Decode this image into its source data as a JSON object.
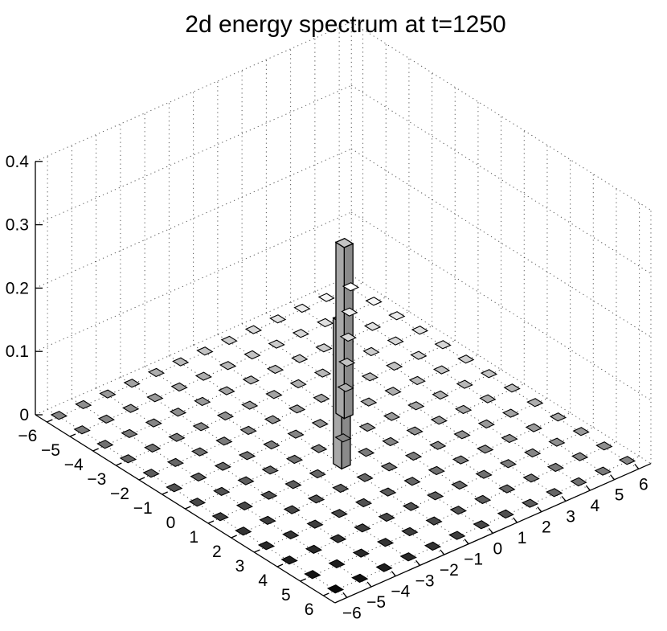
{
  "chart_data": {
    "type": "bar3d",
    "title": "2d energy spectrum at t=1250",
    "xlabel": "",
    "ylabel": "",
    "zlabel": "",
    "x_ticks": [
      "−6",
      "−5",
      "−4",
      "−3",
      "−2",
      "−1",
      "0",
      "1",
      "2",
      "3",
      "4",
      "5",
      "6"
    ],
    "y_ticks": [
      "−6",
      "−5",
      "−4",
      "−3",
      "−2",
      "−1",
      "0",
      "1",
      "2",
      "3",
      "4",
      "5",
      "6"
    ],
    "z_ticks": [
      "0",
      "0.1",
      "0.2",
      "0.3",
      "0.4"
    ],
    "x_range": [
      -6,
      6
    ],
    "y_range": [
      -6,
      6
    ],
    "zlim": [
      0,
      0.4
    ],
    "grid": true,
    "colormap": "gray",
    "colors": {
      "bar_face": "#9a9a9a",
      "bar_edge": "#000000",
      "grid": "#555555"
    },
    "tall_bars": [
      {
        "kx": -1,
        "ky": 1,
        "energy": 0.27
      },
      {
        "kx": 1,
        "ky": -1,
        "energy": 0.23
      }
    ],
    "background_bar_energy": 0.002
  }
}
